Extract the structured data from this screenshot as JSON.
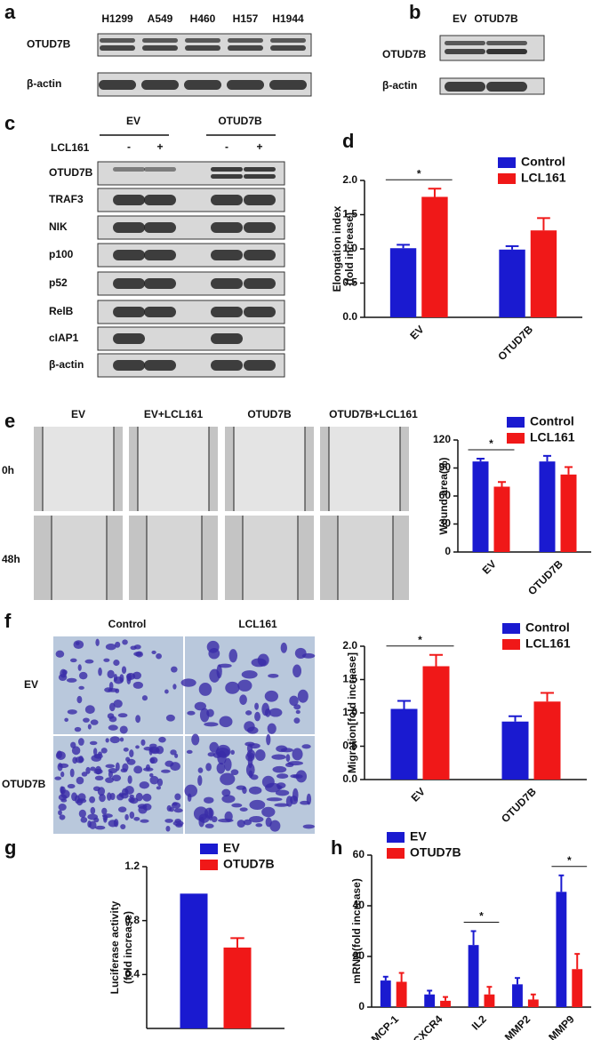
{
  "panels": [
    "a",
    "b",
    "c",
    "d",
    "e",
    "f",
    "g",
    "h"
  ],
  "blot_a": {
    "lanes": [
      "H1299",
      "A549",
      "H460",
      "H157",
      "H1944"
    ],
    "rows": [
      "OTUD7B",
      "β-actin"
    ]
  },
  "blot_b": {
    "lanes": [
      "EV",
      "OTUD7B"
    ],
    "rows": [
      "OTUD7B",
      "β-actin"
    ]
  },
  "blot_c": {
    "groups": [
      "EV",
      "OTUD7B"
    ],
    "treatment": "LCL161",
    "signs": [
      "-",
      "+",
      "-",
      "+"
    ],
    "rows": [
      "OTUD7B",
      "TRAF3",
      "NIK",
      "p100",
      "p52",
      "RelB",
      "cIAP1",
      "β-actin"
    ]
  },
  "images_e": {
    "columns": [
      "EV",
      "EV+LCL161",
      "OTUD7B",
      "OTUD7B+LCL161"
    ],
    "rows": [
      "0h",
      "48h"
    ]
  },
  "images_f": {
    "columns": [
      "Control",
      "LCL161"
    ],
    "rows": [
      "EV",
      "OTUD7B"
    ]
  },
  "chart_data": [
    {
      "type": "bar",
      "ylabel": [
        "Elongation index",
        "(fold increase)"
      ],
      "categories": [
        "EV",
        "OTUD7B"
      ],
      "series": [
        {
          "name": "Control",
          "color": "#1a1ad0",
          "values": [
            1.01,
            0.99
          ],
          "errors": [
            0.05,
            0.05
          ]
        },
        {
          "name": "LCL161",
          "color": "#f01818",
          "values": [
            1.76,
            1.27
          ],
          "errors": [
            0.12,
            0.18
          ]
        }
      ],
      "ylim": [
        0,
        2.0
      ],
      "yticks": [
        {
          "value": 0,
          "label": "0.0"
        },
        {
          "value": 0.5,
          "label": "0.5"
        },
        {
          "value": 1.0,
          "label": "1.0"
        },
        {
          "value": 1.5,
          "label": "1.5"
        },
        {
          "value": 2.0,
          "label": "2.0"
        }
      ],
      "legend": "upper right",
      "annotations": [
        {
          "text": "*",
          "category": 0
        }
      ]
    },
    {
      "type": "bar",
      "ylabel": [
        "Wound area(%)"
      ],
      "categories": [
        "EV",
        "OTUD7B"
      ],
      "series": [
        {
          "name": "Control",
          "color": "#1a1ad0",
          "values": [
            97,
            97
          ],
          "errors": [
            3,
            6
          ]
        },
        {
          "name": "LCL161",
          "color": "#f01818",
          "values": [
            70,
            83
          ],
          "errors": [
            5,
            8
          ]
        }
      ],
      "ylim": [
        0,
        120
      ],
      "yticks": [
        0,
        30,
        60,
        90,
        120
      ],
      "legend": "upper right",
      "annotations": [
        {
          "text": "*",
          "category": 0
        }
      ]
    },
    {
      "type": "bar",
      "ylabel": [
        "Migration[fold increase]"
      ],
      "categories": [
        "EV",
        "OTUD7B"
      ],
      "series": [
        {
          "name": "Control",
          "color": "#1a1ad0",
          "values": [
            1.06,
            0.87
          ],
          "errors": [
            0.12,
            0.08
          ]
        },
        {
          "name": "LCL161",
          "color": "#f01818",
          "values": [
            1.7,
            1.17
          ],
          "errors": [
            0.17,
            0.13
          ]
        }
      ],
      "ylim": [
        0,
        2.0
      ],
      "yticks": [
        {
          "value": 0,
          "label": "0.0"
        },
        {
          "value": 0.5,
          "label": "0.5"
        },
        {
          "value": 1.0,
          "label": "1.0"
        },
        {
          "value": 1.5,
          "label": "1.5"
        },
        {
          "value": 2.0,
          "label": "2.0"
        }
      ],
      "legend": "upper right",
      "annotations": [
        {
          "text": "*",
          "category": 0
        }
      ]
    },
    {
      "type": "bar",
      "ylabel": [
        "Luciferase activity",
        "(fold increase)"
      ],
      "categories": [
        null
      ],
      "series": [
        {
          "name": "EV",
          "color": "#1a1ad0",
          "values": [
            1.0
          ],
          "errors": [
            0
          ]
        },
        {
          "name": "OTUD7B",
          "color": "#f01818",
          "values": [
            0.6
          ],
          "errors": [
            0.07
          ]
        }
      ],
      "ylim": [
        0,
        1.2
      ],
      "yticks": [
        {
          "value": 0.4,
          "label": "0.4"
        },
        {
          "value": 0.8,
          "label": "0.8"
        },
        {
          "value": 1.2,
          "label": "1.2"
        }
      ],
      "legend": "upper right",
      "annotations": []
    },
    {
      "type": "bar",
      "ylabel": [
        "mRNA(fold increase)"
      ],
      "categories": [
        "MCP-1",
        "CXCR4",
        "IL2",
        "MMP2",
        "MMP9"
      ],
      "series": [
        {
          "name": "EV",
          "color": "#1a1ad0",
          "values": [
            10.5,
            5,
            24.5,
            9,
            45.5
          ],
          "errors": [
            1.5,
            1.5,
            5.5,
            2.5,
            6.5
          ]
        },
        {
          "name": "OTUD7B",
          "color": "#f01818",
          "values": [
            10,
            2.5,
            5,
            3,
            15
          ],
          "errors": [
            3.5,
            1.5,
            3,
            2,
            6
          ]
        }
      ],
      "ylim": [
        0,
        60
      ],
      "yticks": [
        0,
        20,
        40,
        60
      ],
      "legend": "upper left",
      "annotations": [
        {
          "text": "*",
          "category": 2
        },
        {
          "text": "*",
          "category": 4
        }
      ]
    }
  ]
}
